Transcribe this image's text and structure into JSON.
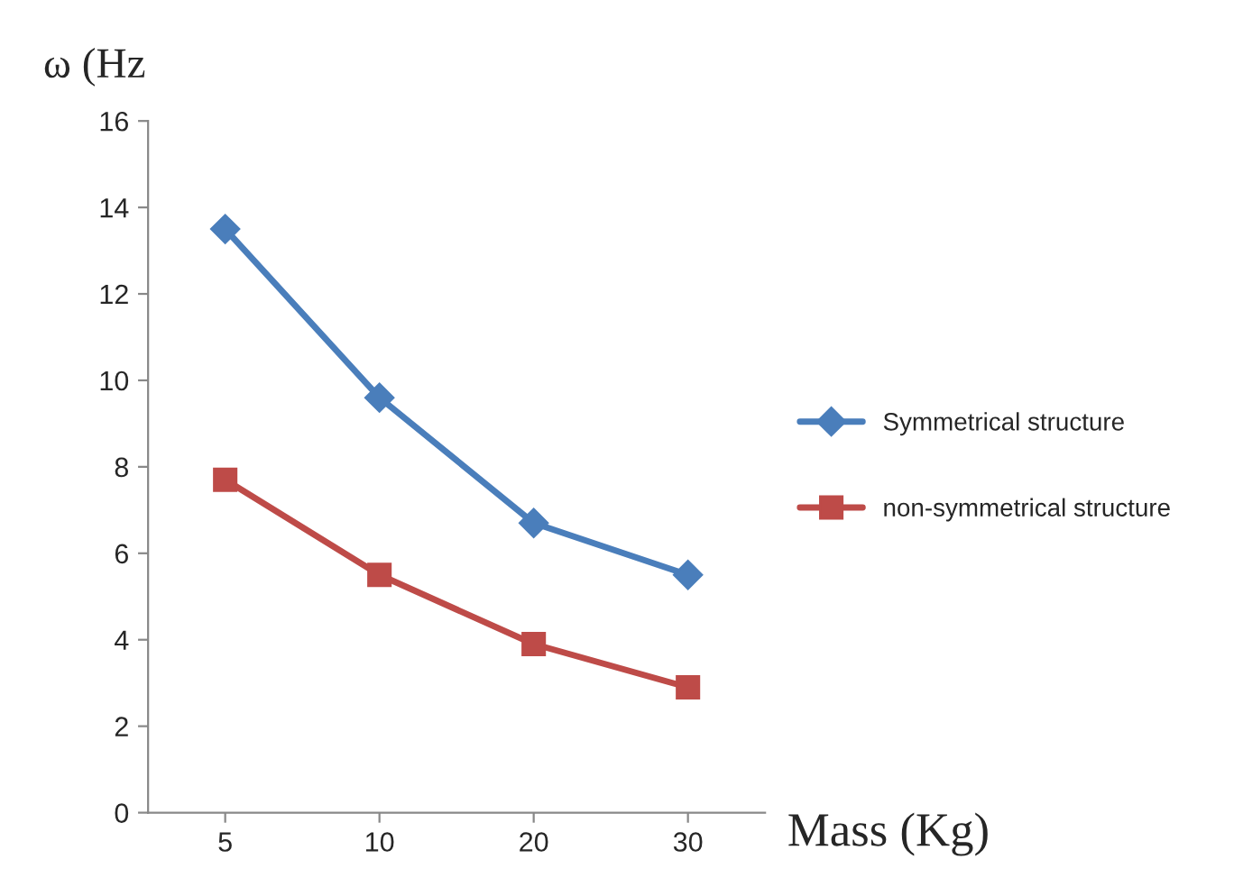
{
  "chart_data": {
    "type": "line",
    "xlabel": "Mass (Kg)",
    "ylabel": "ω (Hz",
    "categories": [
      "5",
      "10",
      "20",
      "30"
    ],
    "series": [
      {
        "name": "Symmetrical structure",
        "color": "#4a7ebb",
        "marker": "diamond",
        "values": [
          13.5,
          9.6,
          6.7,
          5.5
        ]
      },
      {
        "name": "non-symmetrical structure",
        "color": "#be4b48",
        "marker": "square",
        "values": [
          7.7,
          5.5,
          3.9,
          2.9
        ]
      }
    ],
    "ylim": [
      0,
      16
    ],
    "yticks": [
      0,
      2,
      4,
      6,
      8,
      10,
      12,
      14,
      16
    ],
    "grid": false,
    "legend": "right",
    "line_style": "solid"
  }
}
